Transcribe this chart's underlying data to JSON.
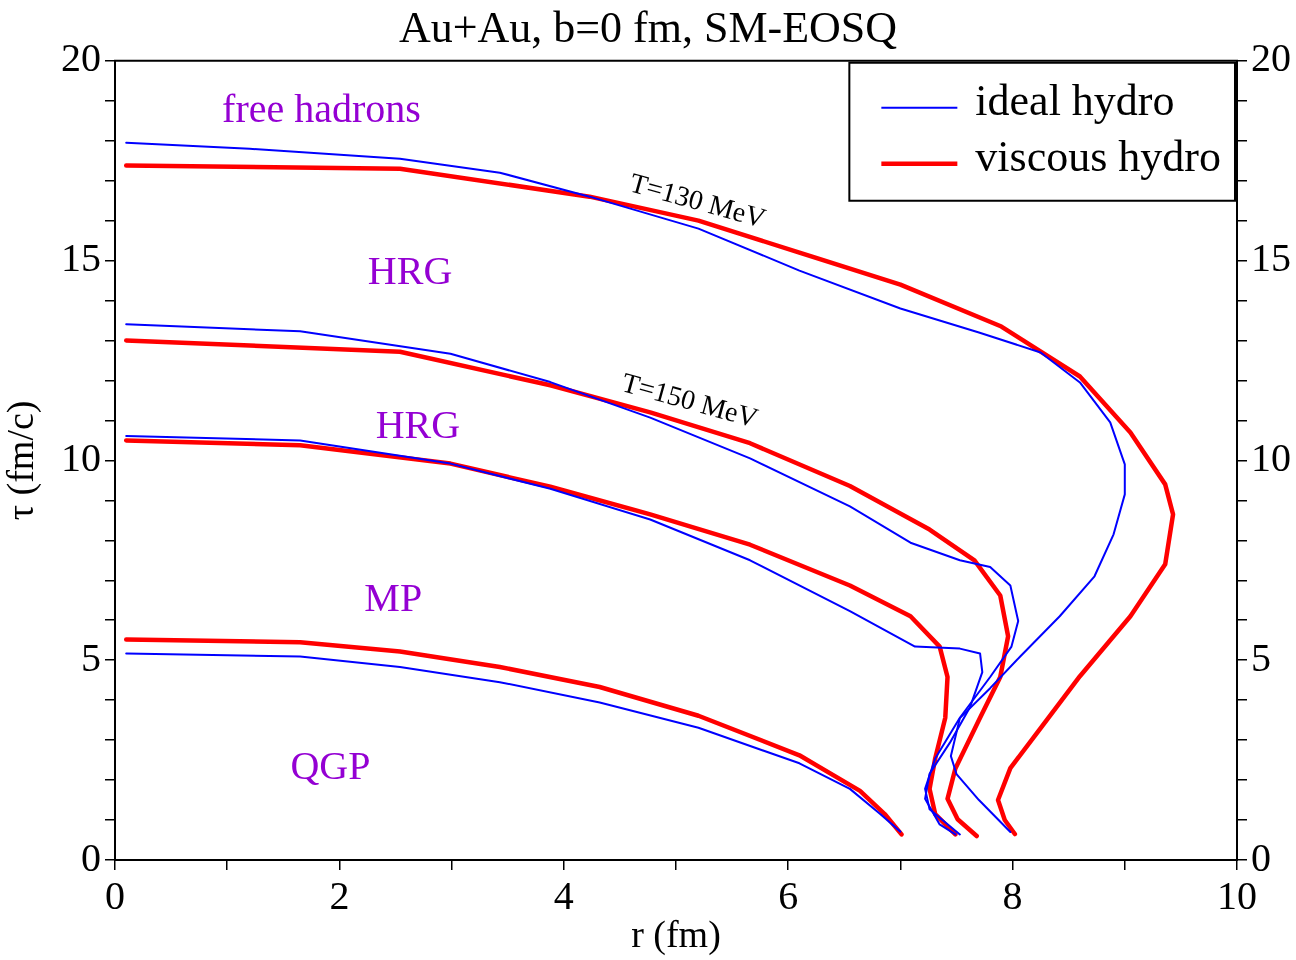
{
  "chart_data": {
    "type": "line",
    "title": "Au+Au, b=0 fm, SM-EOSQ",
    "xlabel": "r (fm)",
    "ylabel": "τ (fm/c)",
    "xlim": [
      0,
      10
    ],
    "xticks": [
      0,
      {
        "value": 1,
        "label": null
      },
      2,
      {
        "value": 3,
        "label": null
      },
      4,
      {
        "value": 5,
        "label": null
      },
      6,
      {
        "value": 7,
        "label": null
      },
      8,
      {
        "value": 9,
        "label": null
      },
      10
    ],
    "ylim": [
      0,
      20
    ],
    "yticks": [
      0,
      {
        "value": 1,
        "label": null
      },
      {
        "value": 2,
        "label": null
      },
      {
        "value": 3,
        "label": null
      },
      {
        "value": 4,
        "label": null
      },
      5,
      {
        "value": 6,
        "label": null
      },
      {
        "value": 7,
        "label": null
      },
      {
        "value": 8,
        "label": null
      },
      {
        "value": 9,
        "label": null
      },
      10,
      {
        "value": 11,
        "label": null
      },
      {
        "value": 12,
        "label": null
      },
      {
        "value": 13,
        "label": null
      },
      {
        "value": 14,
        "label": null
      },
      15,
      {
        "value": 16,
        "label": null
      },
      {
        "value": 17,
        "label": null
      },
      {
        "value": 18,
        "label": null
      },
      {
        "value": 19,
        "label": null
      },
      20
    ],
    "y2lim": [
      0,
      20
    ],
    "y2ticks": [
      0,
      {
        "value": 1,
        "label": null
      },
      {
        "value": 2,
        "label": null
      },
      {
        "value": 3,
        "label": null
      },
      {
        "value": 4,
        "label": null
      },
      5,
      {
        "value": 6,
        "label": null
      },
      {
        "value": 7,
        "label": null
      },
      {
        "value": 8,
        "label": null
      },
      {
        "value": 9,
        "label": null
      },
      10,
      {
        "value": 11,
        "label": null
      },
      {
        "value": 12,
        "label": null
      },
      {
        "value": 13,
        "label": null
      },
      {
        "value": 14,
        "label": null
      },
      15,
      {
        "value": 16,
        "label": null
      },
      {
        "value": 17,
        "label": null
      },
      {
        "value": 18,
        "label": null
      },
      {
        "value": 19,
        "label": null
      },
      20
    ],
    "grid": false,
    "legend": "top right",
    "marker": "none",
    "line_style": "solid",
    "series": [
      {
        "name": "ideal hydro",
        "color": "#0000ff",
        "x": [
          0.1,
          1.2,
          2.54,
          3.43,
          4.23,
          5.2,
          6.1,
          7.0,
          7.7,
          8.25,
          8.6,
          8.87,
          9.0,
          9.0,
          8.9,
          8.73,
          8.42,
          8.07,
          7.8,
          7.53,
          7.45,
          7.5,
          7.7,
          7.98
        ],
        "values": [
          17.95,
          17.8,
          17.55,
          17.2,
          16.6,
          15.8,
          14.75,
          13.8,
          13.2,
          12.7,
          11.95,
          10.95,
          9.9,
          9.15,
          8.15,
          7.1,
          6.1,
          5.1,
          4.3,
          3.55,
          2.6,
          2.15,
          1.5,
          0.7
        ]
      },
      {
        "name": "viscous hydro",
        "color": "#ff0000",
        "x": [
          0.1,
          2.54,
          4.23,
          5.2,
          6.1,
          7.0,
          7.9,
          8.6,
          9.05,
          9.36,
          9.43,
          9.36,
          9.05,
          8.6,
          8.25,
          7.98,
          7.87,
          7.93,
          8.02
        ],
        "values": [
          17.38,
          17.3,
          16.6,
          16.0,
          15.2,
          14.4,
          13.35,
          12.1,
          10.7,
          9.4,
          8.65,
          7.4,
          6.1,
          4.6,
          3.3,
          2.3,
          1.5,
          1.0,
          0.65
        ]
      },
      {
        "color": "#0000ff",
        "x": [
          0.1,
          1.65,
          2.99,
          3.88,
          4.77,
          5.66,
          6.55,
          7.09,
          7.53,
          7.8,
          7.98,
          8.05,
          7.99,
          7.8,
          7.53,
          7.31,
          7.22,
          7.26,
          7.53
        ],
        "values": [
          13.41,
          13.23,
          12.67,
          11.96,
          11.07,
          10.05,
          8.85,
          7.94,
          7.5,
          7.33,
          6.87,
          5.98,
          5.34,
          4.58,
          3.56,
          2.54,
          1.78,
          1.27,
          0.64
        ]
      },
      {
        "color": "#ff0000",
        "x": [
          0.1,
          2.54,
          3.88,
          4.77,
          5.66,
          6.55,
          7.26,
          7.66,
          7.89,
          7.96,
          7.89,
          7.71,
          7.49,
          7.42,
          7.51,
          7.68
        ],
        "values": [
          13.0,
          12.72,
          11.88,
          11.2,
          10.43,
          9.36,
          8.27,
          7.5,
          6.62,
          5.6,
          4.58,
          3.56,
          2.29,
          1.53,
          1.02,
          0.6
        ]
      },
      {
        "color": "#0000ff",
        "x": [
          0.1,
          1.65,
          2.99,
          3.88,
          4.77,
          5.66,
          6.55,
          7.13,
          7.53,
          7.71,
          7.73,
          7.62,
          7.44,
          7.26,
          7.22,
          7.35,
          7.49
        ],
        "values": [
          10.61,
          10.5,
          9.92,
          9.29,
          8.52,
          7.5,
          6.23,
          5.34,
          5.29,
          5.17,
          4.7,
          3.82,
          2.93,
          2.16,
          1.53,
          0.89,
          0.64
        ]
      },
      {
        "color": "#ff0000",
        "x": [
          0.1,
          1.65,
          2.99,
          3.88,
          4.77,
          5.66,
          6.55,
          7.09,
          7.35,
          7.42,
          7.4,
          7.31,
          7.26,
          7.31,
          7.49
        ],
        "values": [
          10.5,
          10.38,
          9.92,
          9.34,
          8.65,
          7.89,
          6.87,
          6.1,
          5.34,
          4.58,
          3.56,
          2.54,
          1.78,
          1.15,
          0.64
        ]
      },
      {
        "color": "#0000ff",
        "x": [
          0.1,
          1.65,
          2.54,
          3.43,
          4.32,
          5.2,
          6.1,
          6.55,
          6.82,
          7.0
        ],
        "values": [
          5.17,
          5.09,
          4.83,
          4.45,
          3.94,
          3.31,
          2.42,
          1.78,
          1.15,
          0.71
        ]
      },
      {
        "color": "#ff0000",
        "x": [
          0.1,
          1.65,
          2.54,
          3.43,
          4.32,
          5.2,
          6.1,
          6.64,
          6.86,
          7.01
        ],
        "values": [
          5.52,
          5.45,
          5.22,
          4.83,
          4.33,
          3.61,
          2.62,
          1.73,
          1.15,
          0.64
        ]
      }
    ],
    "annotations": [
      "free hadrons",
      "HRG",
      "HRG",
      "MP",
      "QGP",
      "T=130 MeV",
      "T=150 MeV"
    ]
  }
}
